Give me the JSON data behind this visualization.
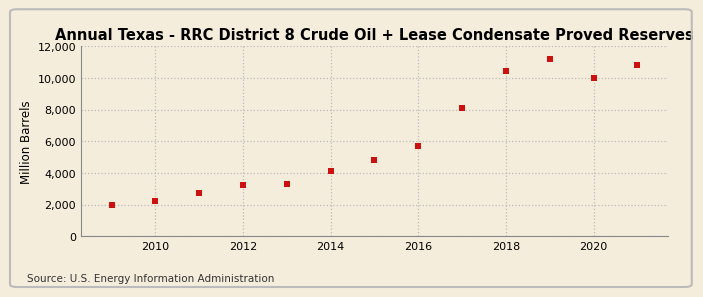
{
  "title": "Annual Texas - RRC District 8 Crude Oil + Lease Condensate Proved Reserves",
  "ylabel": "Million Barrels",
  "source": "Source: U.S. Energy Information Administration",
  "years": [
    2009,
    2010,
    2011,
    2012,
    2013,
    2014,
    2015,
    2016,
    2017,
    2018,
    2019,
    2020,
    2021
  ],
  "values": [
    2000,
    2250,
    2700,
    3250,
    3300,
    4100,
    4800,
    5700,
    8100,
    10450,
    11200,
    10000,
    10800
  ],
  "marker_color": "#cc1111",
  "marker": "s",
  "marker_size": 5,
  "background_color": "#f5eddc",
  "plot_bg_color": "#f5eddc",
  "grid_color": "#bbbbbb",
  "spine_color": "#888888",
  "ylim": [
    0,
    12000
  ],
  "yticks": [
    0,
    2000,
    4000,
    6000,
    8000,
    10000,
    12000
  ],
  "xlim": [
    2008.3,
    2021.7
  ],
  "xticks": [
    2010,
    2012,
    2014,
    2016,
    2018,
    2020
  ],
  "title_fontsize": 10.5,
  "ylabel_fontsize": 8.5,
  "tick_fontsize": 8,
  "source_fontsize": 7.5
}
